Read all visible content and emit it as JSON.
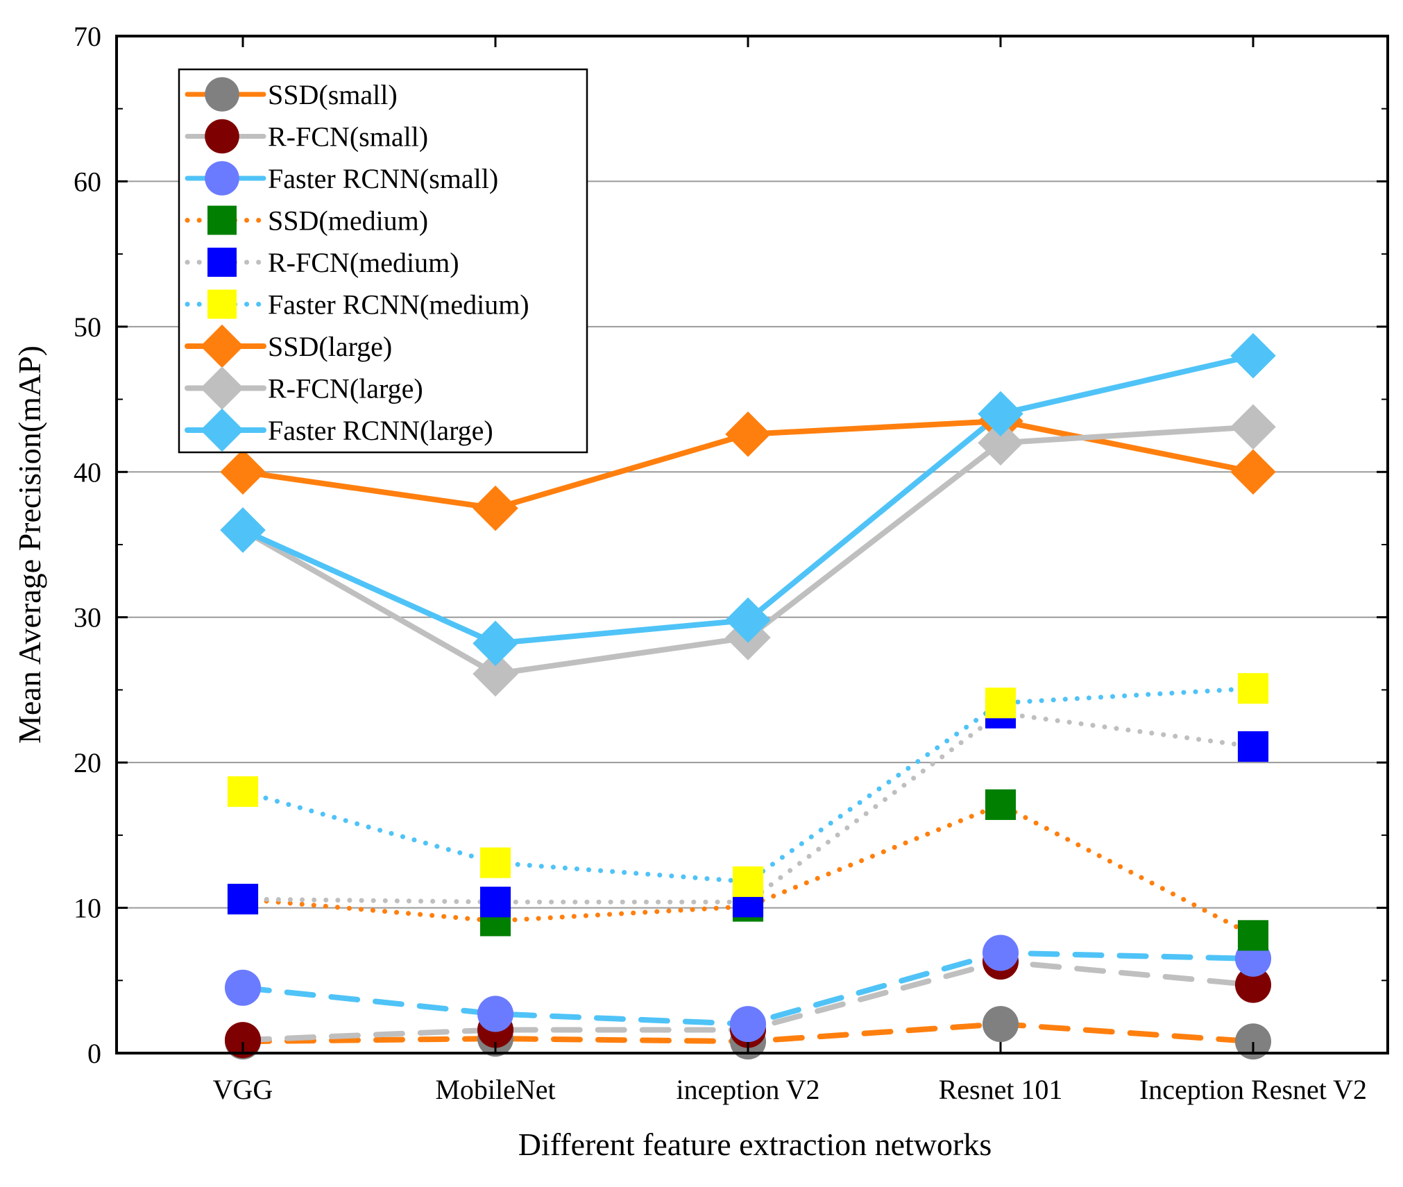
{
  "chart_data": {
    "type": "line",
    "title": "",
    "xlabel": "Different feature extraction networks",
    "ylabel": "Mean Average Precision(mAP)",
    "categories": [
      "VGG",
      "MobileNet",
      "inception V2",
      "Resnet 101",
      "Inception Resnet V2"
    ],
    "ylim": [
      0,
      70
    ],
    "yticks": [
      0,
      10,
      20,
      30,
      40,
      50,
      60,
      70
    ],
    "grid": "horizontal",
    "legend_position": "top-left",
    "series": [
      {
        "name": "SSD(small)",
        "color": "#FF7F0E",
        "marker": "circle",
        "marker_color": "#808080",
        "line_style": "dashed",
        "values": [
          0.8,
          1.0,
          0.8,
          2.0,
          0.8
        ]
      },
      {
        "name": "R-FCN(small)",
        "color": "#BFBFBF",
        "marker": "circle",
        "marker_color": "#7F0000",
        "line_style": "dashed",
        "values": [
          0.9,
          1.6,
          1.6,
          6.3,
          4.7
        ]
      },
      {
        "name": "Faster RCNN(small)",
        "color": "#4FC3F7",
        "marker": "circle",
        "marker_color": "#6B7BFF",
        "line_style": "dashed",
        "values": [
          4.5,
          2.7,
          2.0,
          6.9,
          6.5
        ]
      },
      {
        "name": "SSD(medium)",
        "color": "#FF7F0E",
        "marker": "square",
        "marker_color": "#007F00",
        "line_style": "dotted",
        "values": [
          10.6,
          9.1,
          10.1,
          17.1,
          8.1
        ]
      },
      {
        "name": "R-FCN(medium)",
        "color": "#BFBFBF",
        "marker": "square",
        "marker_color": "#0000FF",
        "line_style": "dotted",
        "values": [
          10.6,
          10.4,
          10.4,
          23.4,
          21.1
        ]
      },
      {
        "name": "Faster RCNN(medium)",
        "color": "#4FC3F7",
        "marker": "square",
        "marker_color": "#FFFF00",
        "line_style": "dotted",
        "values": [
          18.0,
          13.1,
          11.8,
          24.1,
          25.1
        ]
      },
      {
        "name": "SSD(large)",
        "color": "#FF7F0E",
        "marker": "diamond",
        "marker_color": "#FF7F0E",
        "line_style": "solid",
        "values": [
          40.0,
          37.5,
          42.6,
          43.5,
          40.0
        ]
      },
      {
        "name": "R-FCN(large)",
        "color": "#BFBFBF",
        "marker": "diamond",
        "marker_color": "#BFBFBF",
        "line_style": "solid",
        "values": [
          36.0,
          26.1,
          28.6,
          42.0,
          43.1
        ]
      },
      {
        "name": "Faster RCNN(large)",
        "color": "#4FC3F7",
        "marker": "diamond",
        "marker_color": "#4FC3F7",
        "line_style": "solid",
        "values": [
          36.0,
          28.2,
          29.8,
          44.0,
          48.0
        ]
      }
    ]
  }
}
